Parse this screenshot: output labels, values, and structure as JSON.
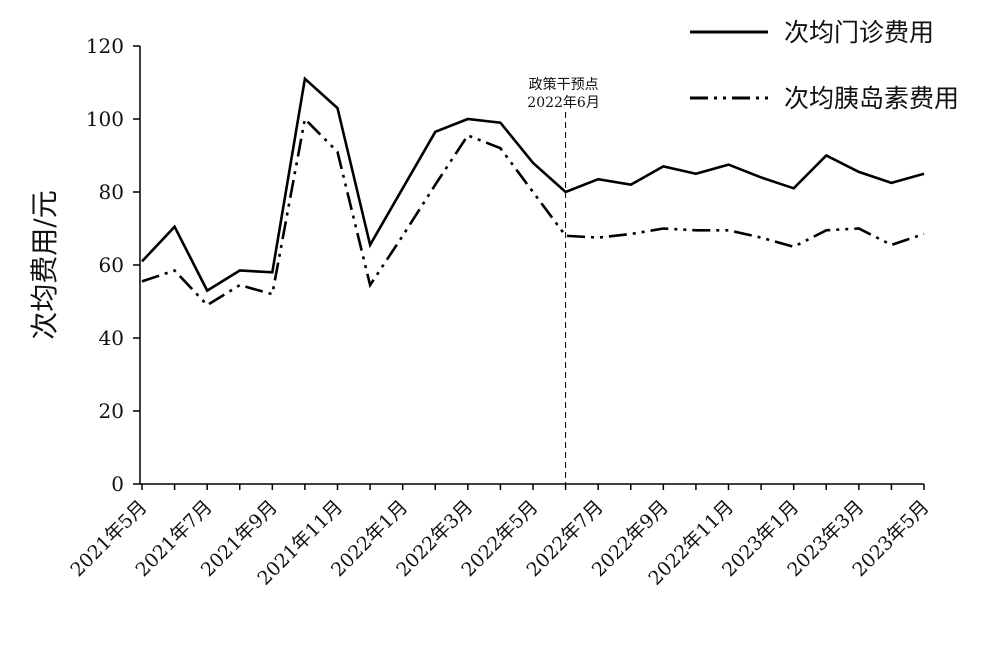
{
  "chart_data": {
    "type": "line",
    "ylabel": "次均费用/元",
    "ylim": [
      0,
      120
    ],
    "y_ticks": [
      0,
      20,
      40,
      60,
      80,
      100,
      120
    ],
    "grid": false,
    "legend_position": "top-right",
    "x": [
      "2021年5月",
      "2021年6月",
      "2021年7月",
      "2021年8月",
      "2021年9月",
      "2021年10月",
      "2021年11月",
      "2021年12月",
      "2022年1月",
      "2022年2月",
      "2022年3月",
      "2022年4月",
      "2022年5月",
      "2022年6月",
      "2022年7月",
      "2022年8月",
      "2022年9月",
      "2022年10月",
      "2022年11月",
      "2022年12月",
      "2023年1月",
      "2023年2月",
      "2023年3月",
      "2023年4月",
      "2023年5月"
    ],
    "x_tick_labels": [
      "2021年5月",
      "2021年7月",
      "2021年9月",
      "2021年11月",
      "2022年1月",
      "2022年3月",
      "2022年5月",
      "2022年7月",
      "2022年9月",
      "2022年11月",
      "2023年1月",
      "2023年3月",
      "2023年5月"
    ],
    "series": [
      {
        "name": "次均门诊费用",
        "style": "solid",
        "values": [
          61,
          70.5,
          53,
          58.5,
          58,
          111,
          103,
          65.5,
          81,
          96.5,
          100,
          99,
          88,
          80,
          83.5,
          82,
          87,
          85,
          87.5,
          84,
          81,
          90,
          85.5,
          82.5,
          85
        ]
      },
      {
        "name": "次均胰岛素费用",
        "style": "dash-dot-dot",
        "values": [
          55.5,
          58.5,
          49,
          54.5,
          52,
          100,
          91,
          54.5,
          68,
          82,
          95.5,
          92,
          80,
          68,
          67.5,
          68.5,
          70,
          69.5,
          69.5,
          67.5,
          65,
          69.5,
          70,
          65.5,
          68.5
        ]
      }
    ],
    "annotation": {
      "line1": "政策干预点",
      "line2": "2022年6月",
      "x": "2022年6月"
    }
  }
}
